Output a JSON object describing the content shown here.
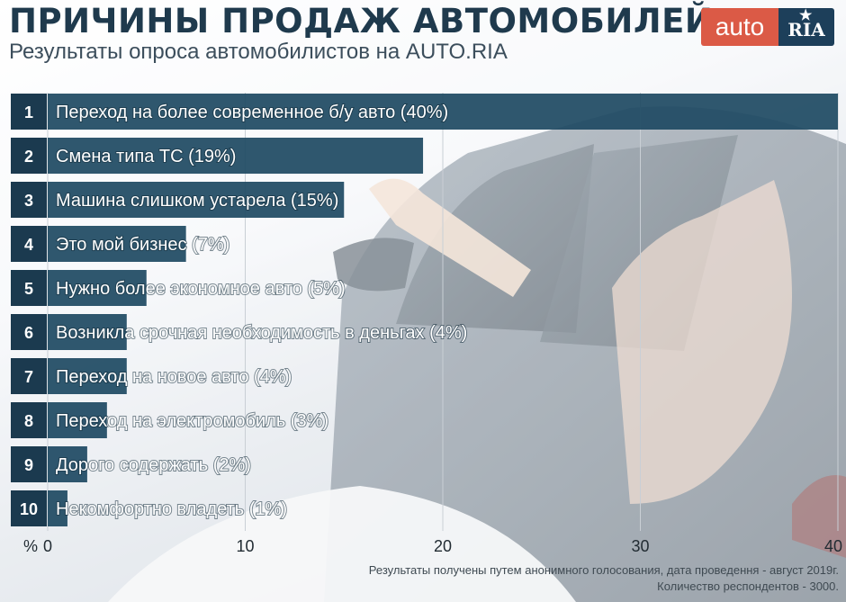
{
  "header": {
    "title": "ПРИЧИНЫ ПРОДАЖ АВТОМОБИЛЕЙ",
    "subtitle": "Результаты опроса автомобилистов на AUTO.RIA"
  },
  "logo": {
    "auto": "auto",
    "ria": "RIA"
  },
  "colors": {
    "bar": "#1f4a63",
    "rank": "#1b3a4f",
    "gridline": "#c9cfd5",
    "accent": "#db5a46"
  },
  "chart_data": {
    "type": "bar",
    "orientation": "horizontal",
    "ranks": [
      "1",
      "2",
      "3",
      "4",
      "5",
      "6",
      "7",
      "8",
      "9",
      "10"
    ],
    "categories": [
      "Переход на более современное б/у авто (40%)",
      "Смена типа ТС (19%)",
      "Машина слишком устарела (15%)",
      "Это мой бизнес  (7%)",
      "Нужно более экономное авто (5%)",
      "Возникла срочная необходимость в деньгах (4%)",
      "Переход на новое авто (4%)",
      "Переход на электромобиль (3%)",
      "Дорого содержать (2%)",
      "Некомфортно владеть (1%)"
    ],
    "values": [
      40,
      19,
      15,
      7,
      5,
      4,
      4,
      3,
      2,
      1
    ],
    "xlabel": "%",
    "xlim": [
      0,
      40
    ],
    "xticks": [
      "0",
      "10",
      "20",
      "30",
      "40"
    ],
    "grid": true
  },
  "footnote": {
    "line1": "Результаты получены путем анонимного голосования, дата проведення - август 2019г.",
    "line2": "Количество респондентов - 3000."
  }
}
